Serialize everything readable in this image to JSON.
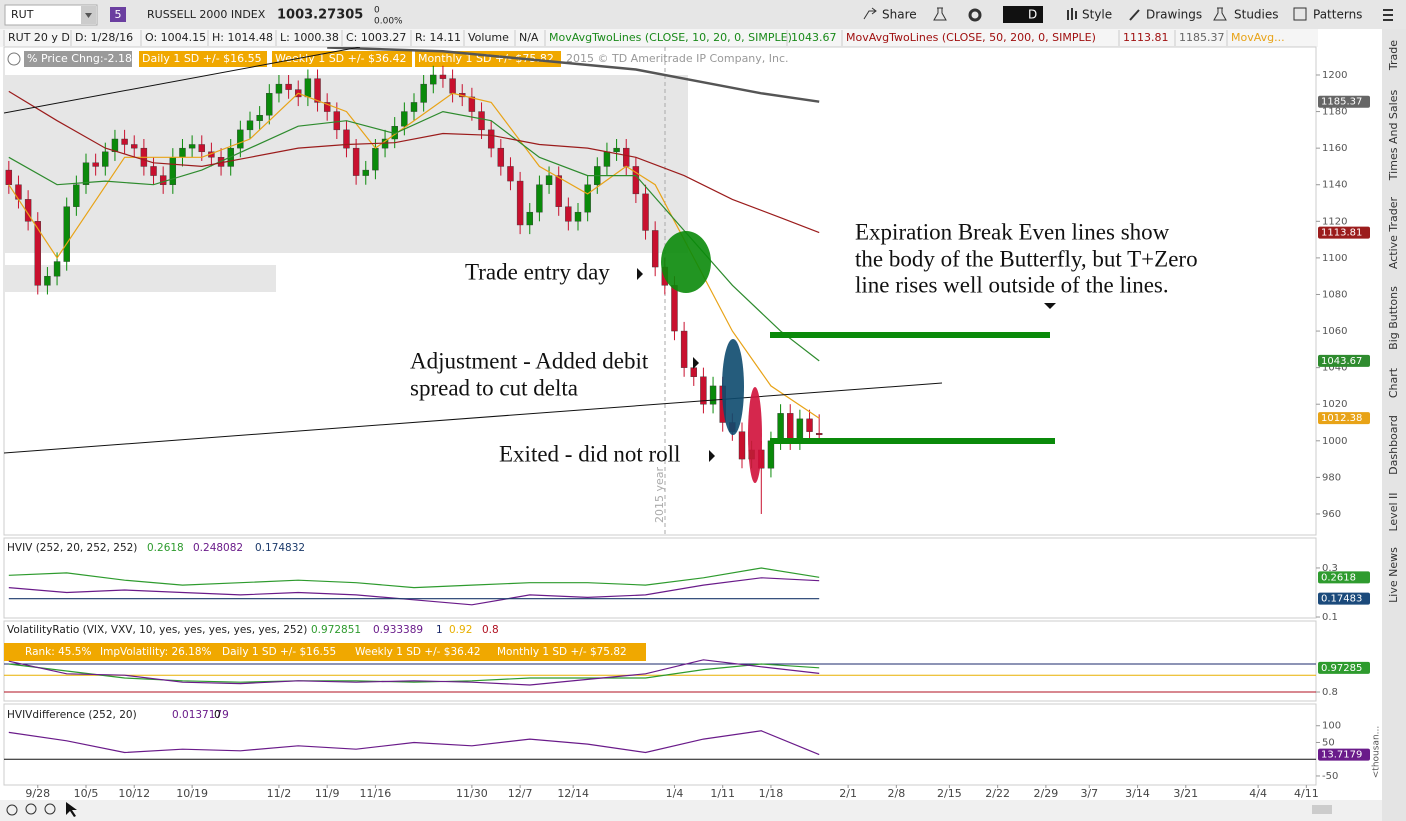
{
  "toolbar": {
    "symbol": "RUT",
    "link": "5",
    "description": "RUSSELL 2000 INDEX",
    "last": "1003.27305",
    "change": "0",
    "change_pct": "0.00%",
    "buttons": [
      "Share",
      "D",
      "Style",
      "Drawings",
      "Studies",
      "Patterns"
    ]
  },
  "info_bar": [
    "RUT 20 y D",
    "D: 1/28/16",
    "O: 1004.15",
    "H: 1014.48",
    "L: 1000.38",
    "C: 1003.27",
    "R: 14.11",
    "Volume",
    "N/A",
    "MovAvgTwoLines (CLOSE, 10, 20, 0, SIMPLE)",
    "1043.67",
    "MovAvgTwoLines (CLOSE, 50, 200, 0, SIMPLE)",
    "1113.81",
    "1185.37",
    "MovAvg..."
  ],
  "studies_bar": [
    "% Price Chng:-2.18",
    "Daily 1 SD +/- $16.55",
    "Weekly 1 SD +/- $36.42",
    "Monthly 1 SD +/- $75.82",
    "2015 © TD Ameritrade IP Company, Inc."
  ],
  "annotations": {
    "year_marker": "2015 year",
    "entry": "Trade entry day",
    "adjustment": [
      "Adjustment - Added debit",
      "spread to cut delta"
    ],
    "exit": "Exited - did not roll",
    "note": [
      "Expiration Break Even lines show",
      "the body of the Butterfly, but T+Zero",
      "line rises well outside of the lines."
    ]
  },
  "sidebar_tabs": [
    "Trade",
    "Times And Sales",
    "Active Trader",
    "Big Buttons",
    "Chart",
    "Dashboard",
    "Level II",
    "Live News"
  ],
  "chart_data": [
    {
      "type": "candlestick",
      "xlim": [
        -0.5,
        135.5
      ],
      "ylim": [
        948.5,
        1215.3
      ],
      "yticks": [
        960,
        980,
        1000,
        1020,
        1040,
        1060,
        1080,
        1100,
        1120,
        1140,
        1160,
        1180,
        1200
      ],
      "xticks": [
        {
          "value": 3,
          "label": "9/28"
        },
        {
          "value": 8,
          "label": "10/5"
        },
        {
          "value": 13,
          "label": "10/12"
        },
        {
          "value": 19,
          "label": "10/19"
        },
        {
          "value": 28,
          "label": "11/2"
        },
        {
          "value": 33,
          "label": "11/9"
        },
        {
          "value": 38,
          "label": "11/16"
        },
        {
          "value": 48,
          "label": "11/30"
        },
        {
          "value": 53,
          "label": "12/7"
        },
        {
          "value": 58.5,
          "label": "12/14"
        },
        {
          "value": 69,
          "label": "1/4"
        },
        {
          "value": 74,
          "label": "1/11"
        },
        {
          "value": 79,
          "label": "1/18"
        },
        {
          "value": 87,
          "label": "2/1"
        },
        {
          "value": 92,
          "label": "2/8"
        },
        {
          "value": 97.5,
          "label": "2/15"
        },
        {
          "value": 102.5,
          "label": "2/22"
        },
        {
          "value": 107.5,
          "label": "2/29"
        },
        {
          "value": 112,
          "label": "3/7"
        },
        {
          "value": 117,
          "label": "3/14"
        },
        {
          "value": 122,
          "label": "3/21"
        },
        {
          "value": 129.5,
          "label": "4/4"
        },
        {
          "value": 134.5,
          "label": "4/11"
        }
      ],
      "up_color": "#0a8a0a",
      "down_color": "#c8102e",
      "open": [
        1148,
        1140,
        1132,
        1120,
        1085,
        1090,
        1098,
        1128,
        1140,
        1152,
        1150,
        1158,
        1165,
        1162,
        1160,
        1150,
        1145,
        1140,
        1155,
        1160,
        1162,
        1158,
        1155,
        1150,
        1160,
        1170,
        1175,
        1178,
        1190,
        1195,
        1192,
        1188,
        1198,
        1185,
        1180,
        1170,
        1160,
        1145,
        1148,
        1160,
        1165,
        1172,
        1180,
        1185,
        1195,
        1200,
        1198,
        1190,
        1188,
        1180,
        1170,
        1160,
        1150,
        1142,
        1118,
        1125,
        1140,
        1145,
        1128,
        1120,
        1125,
        1140,
        1150,
        1158,
        1160,
        1150,
        1135,
        1115,
        1095,
        1085,
        1060,
        1040,
        1035,
        1020,
        1030,
        1010,
        1005,
        990,
        995,
        985,
        1000,
        1015,
        1000,
        1012,
        1004.15
      ],
      "high": [
        1153,
        1145,
        1137,
        1125,
        1095,
        1103,
        1133,
        1145,
        1157,
        1157,
        1163,
        1170,
        1170,
        1167,
        1165,
        1155,
        1150,
        1160,
        1165,
        1167,
        1167,
        1163,
        1160,
        1165,
        1175,
        1180,
        1183,
        1195,
        1200,
        1200,
        1197,
        1203,
        1203,
        1190,
        1185,
        1175,
        1165,
        1153,
        1165,
        1170,
        1177,
        1185,
        1190,
        1200,
        1205,
        1205,
        1203,
        1195,
        1193,
        1185,
        1175,
        1165,
        1155,
        1147,
        1130,
        1145,
        1150,
        1150,
        1133,
        1130,
        1145,
        1155,
        1163,
        1165,
        1165,
        1155,
        1140,
        1120,
        1100,
        1090,
        1065,
        1045,
        1040,
        1035,
        1035,
        1015,
        1010,
        1000,
        1000,
        1005,
        1020,
        1020,
        1017,
        1017,
        1014.48
      ],
      "low": [
        1135,
        1127,
        1115,
        1080,
        1080,
        1085,
        1093,
        1123,
        1135,
        1145,
        1145,
        1153,
        1157,
        1155,
        1145,
        1140,
        1135,
        1135,
        1150,
        1155,
        1153,
        1150,
        1145,
        1145,
        1155,
        1165,
        1170,
        1173,
        1185,
        1187,
        1183,
        1183,
        1180,
        1175,
        1165,
        1155,
        1140,
        1140,
        1143,
        1155,
        1160,
        1167,
        1175,
        1180,
        1190,
        1193,
        1185,
        1183,
        1175,
        1165,
        1155,
        1145,
        1137,
        1113,
        1113,
        1120,
        1135,
        1123,
        1115,
        1115,
        1120,
        1135,
        1145,
        1153,
        1145,
        1130,
        1110,
        1090,
        1080,
        1055,
        1035,
        1030,
        1015,
        1015,
        1005,
        1000,
        985,
        985,
        960,
        980,
        995,
        995,
        995,
        1000,
        1000.38
      ],
      "close": [
        1140,
        1132,
        1120,
        1085,
        1090,
        1098,
        1128,
        1140,
        1152,
        1150,
        1158,
        1165,
        1162,
        1160,
        1150,
        1145,
        1140,
        1155,
        1160,
        1162,
        1158,
        1155,
        1150,
        1160,
        1170,
        1175,
        1178,
        1190,
        1195,
        1192,
        1188,
        1198,
        1185,
        1180,
        1170,
        1160,
        1145,
        1148,
        1160,
        1165,
        1172,
        1180,
        1185,
        1195,
        1200,
        1198,
        1190,
        1188,
        1180,
        1170,
        1160,
        1150,
        1142,
        1118,
        1125,
        1140,
        1145,
        1128,
        1120,
        1125,
        1140,
        1150,
        1158,
        1160,
        1150,
        1135,
        1115,
        1095,
        1085,
        1060,
        1040,
        1035,
        1020,
        1030,
        1010,
        1005,
        990,
        995,
        985,
        1000,
        1015,
        1000,
        1012,
        1005,
        1003.27
      ],
      "series": [
        {
          "color": "#e8a317",
          "x": [
            0,
            5,
            12,
            20,
            25,
            30,
            35,
            38,
            42,
            46,
            50,
            55,
            60,
            64,
            67,
            71,
            75,
            79,
            84
          ],
          "values": [
            1140,
            1100,
            1155,
            1155,
            1165,
            1190,
            1180,
            1160,
            1175,
            1190,
            1185,
            1150,
            1135,
            1150,
            1140,
            1100,
            1060,
            1030,
            1012.38
          ]
        },
        {
          "color": "#2e8b2e",
          "x": [
            0,
            5,
            10,
            15,
            20,
            25,
            30,
            35,
            40,
            45,
            50,
            55,
            60,
            65,
            70,
            75,
            80,
            84
          ],
          "values": [
            1155,
            1140,
            1142,
            1140,
            1148,
            1160,
            1172,
            1175,
            1168,
            1180,
            1175,
            1155,
            1145,
            1145,
            1115,
            1085,
            1060,
            1043.67
          ]
        },
        {
          "color": "#9b1c1c",
          "x": [
            0,
            5,
            10,
            15,
            20,
            25,
            30,
            35,
            40,
            45,
            50,
            55,
            60,
            65,
            70,
            75,
            80,
            84
          ],
          "values": [
            1191,
            1175,
            1160,
            1152,
            1150,
            1155,
            1160,
            1162,
            1163,
            1168,
            1167,
            1162,
            1160,
            1155,
            1145,
            1132,
            1122,
            1113.81
          ]
        },
        {
          "color": "#555555",
          "x": [
            33,
            45,
            55,
            65,
            72,
            78,
            84
          ],
          "values": [
            1215,
            1213,
            1208,
            1203,
            1196,
            1190,
            1185.37
          ]
        }
      ],
      "price_labels": [
        {
          "value": 1185.37,
          "color": "#666666"
        },
        {
          "value": 1113.81,
          "color": "#9b1c1c"
        },
        {
          "value": 1043.67,
          "color": "#2e8b2e"
        },
        {
          "value": 1012.38,
          "color": "#e8a317"
        }
      ]
    },
    {
      "type": "line",
      "legend": [
        "HVIV (252, 20, 252, 252)",
        "0.2618",
        "0.248082",
        "0.174832"
      ],
      "xlim": [
        -0.5,
        135.5
      ],
      "ylim": [
        0.096,
        0.414
      ],
      "yticks": [
        0.1,
        0.3
      ],
      "series": [
        {
          "color": "#2e9b2e",
          "x": [
            0,
            6,
            12,
            18,
            24,
            30,
            36,
            42,
            48,
            54,
            60,
            66,
            72,
            78,
            84
          ],
          "values": [
            0.27,
            0.28,
            0.25,
            0.23,
            0.24,
            0.25,
            0.24,
            0.22,
            0.23,
            0.24,
            0.24,
            0.23,
            0.26,
            0.3,
            0.2618
          ]
        },
        {
          "color": "#6a1b8a",
          "x": [
            0,
            6,
            12,
            18,
            24,
            30,
            36,
            42,
            48,
            54,
            60,
            66,
            72,
            78,
            84
          ],
          "values": [
            0.22,
            0.2,
            0.21,
            0.2,
            0.19,
            0.2,
            0.19,
            0.17,
            0.15,
            0.19,
            0.18,
            0.19,
            0.23,
            0.26,
            0.248082
          ]
        },
        {
          "color": "#1b3a6b",
          "x": [
            0,
            84
          ],
          "values": [
            0.174832,
            0.174832
          ]
        }
      ],
      "price_labels": [
        {
          "value": 0.2618,
          "color": "#2e9b2e"
        },
        {
          "value": 0.17483,
          "color": "#1b4a7b"
        }
      ]
    },
    {
      "type": "line",
      "legend": [
        "VolatilityRatio (VIX, VXV, 10, yes, yes, yes, yes, yes, 252)",
        "0.972851",
        "0.933389",
        "1",
        "0.92",
        "0.8"
      ],
      "legend2": [
        "Rank: 45.5%",
        "ImpVolatility: 26.18%",
        "Daily 1 SD +/- $16.55",
        "Weekly 1 SD +/- $36.42",
        "Monthly 1 SD +/- $75.82"
      ],
      "xlim": [
        -0.5,
        135.5
      ],
      "ylim": [
        0.743,
        1.136
      ],
      "yticks": [
        0.8
      ],
      "hlines": [
        {
          "value": 1,
          "color": "#1b2a6b"
        },
        {
          "value": 0.92,
          "color": "#e8b000"
        },
        {
          "value": 0.8,
          "color": "#b01020"
        }
      ],
      "series": [
        {
          "color": "#2e9b2e",
          "x": [
            0,
            6,
            12,
            18,
            24,
            30,
            36,
            42,
            48,
            54,
            60,
            66,
            72,
            78,
            84
          ],
          "values": [
            1.0,
            0.95,
            0.9,
            0.88,
            0.87,
            0.88,
            0.88,
            0.87,
            0.88,
            0.9,
            0.9,
            0.9,
            0.96,
            1.0,
            0.972851
          ]
        },
        {
          "color": "#6a1b8a",
          "x": [
            0,
            6,
            12,
            18,
            24,
            30,
            36,
            42,
            48,
            54,
            60,
            66,
            72,
            78,
            84
          ],
          "values": [
            1.02,
            0.93,
            0.92,
            0.87,
            0.86,
            0.88,
            0.87,
            0.88,
            0.87,
            0.85,
            0.89,
            0.93,
            1.03,
            0.98,
            0.933389
          ]
        }
      ],
      "price_labels": [
        {
          "value": 0.97285,
          "color": "#2e9b2e"
        }
      ]
    },
    {
      "type": "line",
      "legend": [
        "HVIVdifference (252, 20)",
        "0.0137179",
        "0"
      ],
      "axis_note": "<thousan...",
      "xlim": [
        -0.5,
        135.5
      ],
      "ylim": [
        -77,
        141
      ],
      "yticks": [
        -50,
        50,
        100
      ],
      "hlines": [
        {
          "value": 0,
          "color": "#111111"
        }
      ],
      "series": [
        {
          "color": "#6a1b8a",
          "x": [
            0,
            6,
            12,
            18,
            24,
            30,
            36,
            42,
            48,
            54,
            60,
            66,
            72,
            78,
            84
          ],
          "values": [
            80,
            55,
            20,
            30,
            25,
            40,
            30,
            50,
            40,
            60,
            45,
            20,
            60,
            85,
            13.7179
          ]
        }
      ],
      "price_labels": [
        {
          "value": 13.7179,
          "color": "#6a1b8a"
        }
      ]
    }
  ]
}
